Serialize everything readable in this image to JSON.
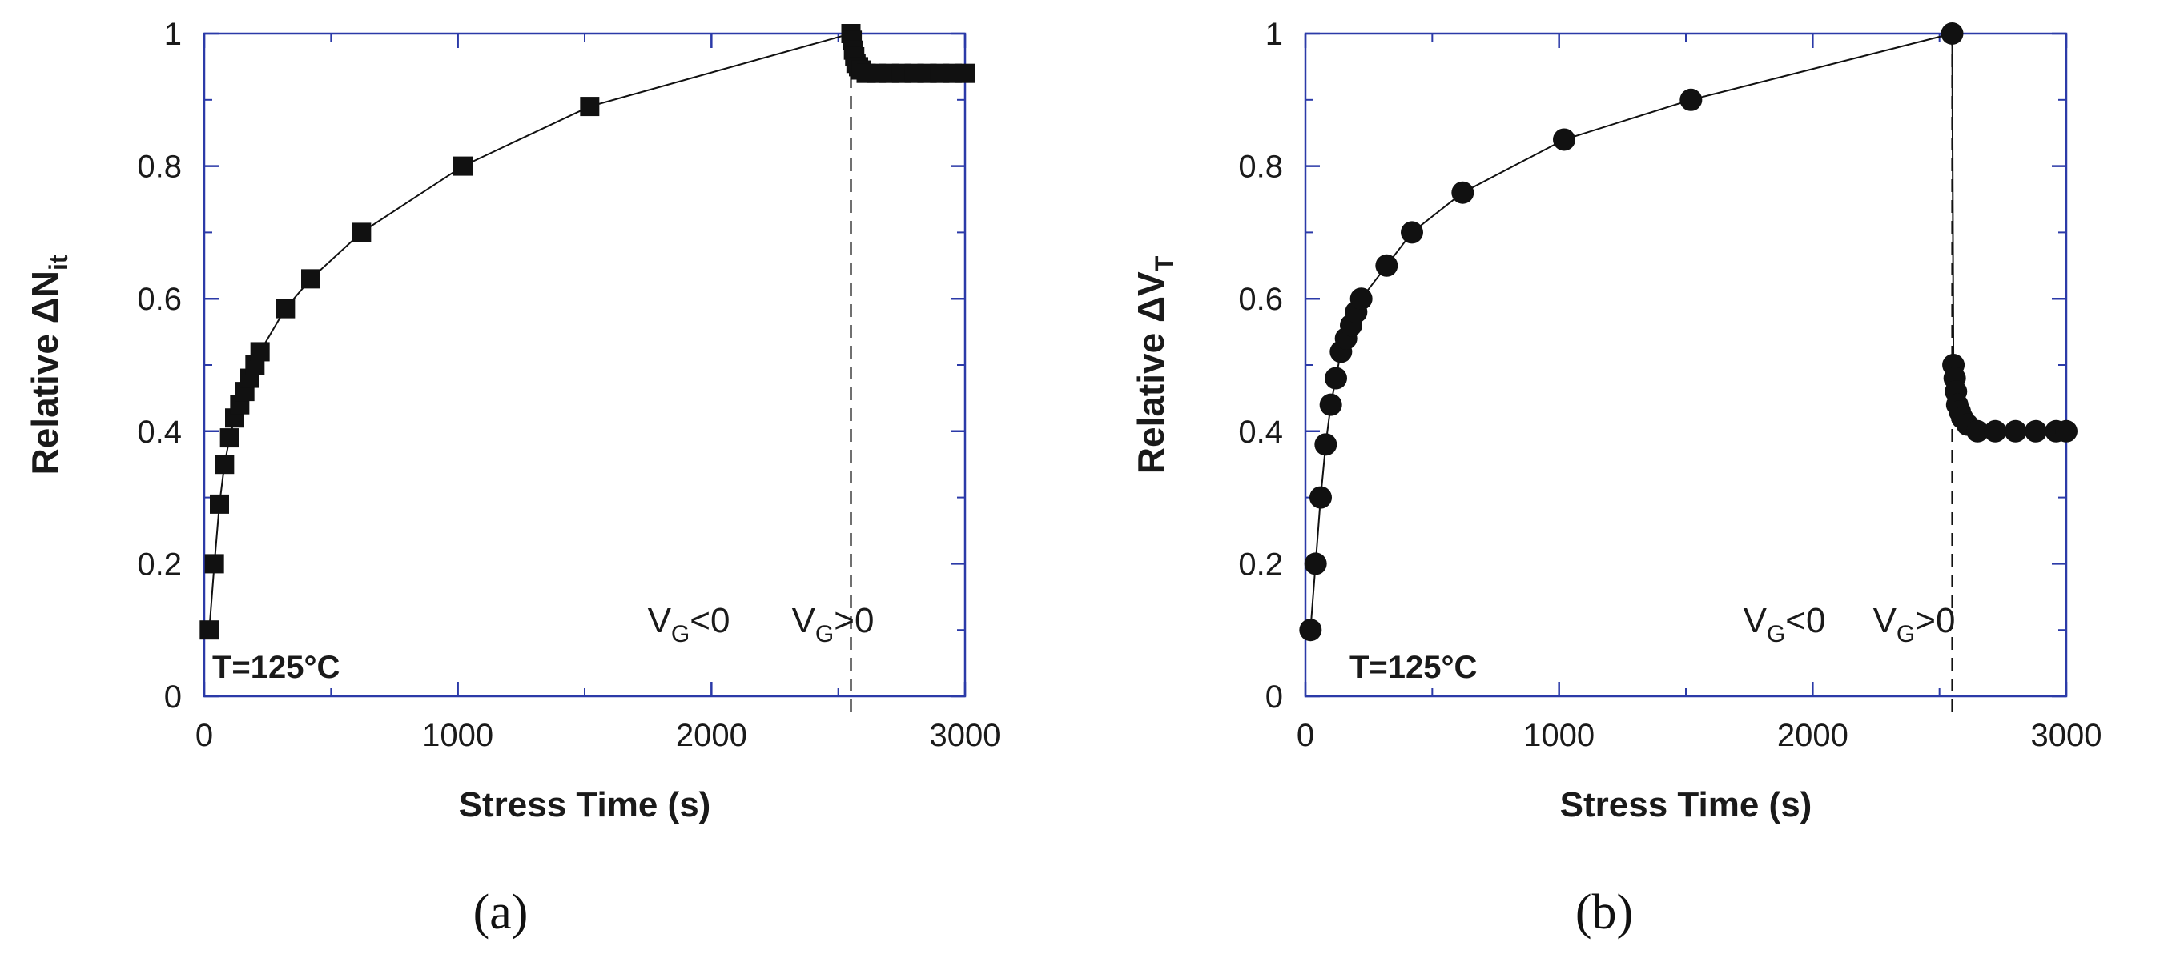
{
  "chart_data": [
    {
      "type": "line",
      "panel_label": "(a)",
      "xlabel": "Stress Time (s)",
      "ylabel": "Relative ΔN",
      "ylabel_subscript": "it",
      "xlim": [
        0,
        3000
      ],
      "ylim": [
        0,
        1
      ],
      "xticks": [
        0,
        1000,
        2000,
        3000
      ],
      "yticks": [
        0,
        0.2,
        0.4,
        0.6,
        0.8,
        1
      ],
      "ytick_labels": [
        "0",
        "0.2",
        "0.4",
        "0.6",
        "0.8",
        "1"
      ],
      "marker": "square",
      "switch_x": 2550,
      "temperature_label": "T=125°C",
      "region_left": {
        "main": "V",
        "sub": "G",
        "rest": "<0"
      },
      "region_right": {
        "main": "V",
        "sub": "G",
        "rest": ">0"
      },
      "series": [
        {
          "name": "ΔNit",
          "x": [
            20,
            40,
            60,
            80,
            100,
            120,
            140,
            160,
            180,
            200,
            220,
            320,
            420,
            620,
            1020,
            1520,
            2550,
            2555,
            2560,
            2565,
            2570,
            2580,
            2590,
            2610,
            2650,
            2700,
            2750,
            2800,
            2850,
            2900,
            2950,
            3000
          ],
          "y": [
            0.1,
            0.2,
            0.29,
            0.35,
            0.39,
            0.42,
            0.44,
            0.46,
            0.48,
            0.5,
            0.52,
            0.585,
            0.63,
            0.7,
            0.8,
            0.89,
            1.0,
            0.99,
            0.975,
            0.965,
            0.955,
            0.95,
            0.945,
            0.94,
            0.94,
            0.94,
            0.94,
            0.94,
            0.94,
            0.94,
            0.94,
            0.94
          ]
        }
      ]
    },
    {
      "type": "line",
      "panel_label": "(b)",
      "xlabel": "Stress Time (s)",
      "ylabel": "Relative ΔV",
      "ylabel_subscript": "T",
      "xlim": [
        0,
        3000
      ],
      "ylim": [
        0,
        1
      ],
      "xticks": [
        0,
        1000,
        2000,
        3000
      ],
      "yticks": [
        0,
        0.2,
        0.4,
        0.6,
        0.8,
        1
      ],
      "ytick_labels": [
        "0",
        "0.2",
        "0.4",
        "0.6",
        "0.8",
        "1"
      ],
      "marker": "circle",
      "switch_x": 2550,
      "temperature_label": "T=125°C",
      "region_left": {
        "main": "V",
        "sub": "G",
        "rest": "<0"
      },
      "region_right": {
        "main": "V",
        "sub": "G",
        "rest": ">0"
      },
      "series": [
        {
          "name": "ΔVT",
          "x": [
            20,
            40,
            60,
            80,
            100,
            120,
            140,
            160,
            180,
            200,
            220,
            320,
            420,
            620,
            1020,
            1520,
            2550,
            2555,
            2560,
            2565,
            2570,
            2580,
            2590,
            2610,
            2650,
            2720,
            2800,
            2880,
            2960,
            3000
          ],
          "y": [
            0.1,
            0.2,
            0.3,
            0.38,
            0.44,
            0.48,
            0.52,
            0.54,
            0.56,
            0.58,
            0.6,
            0.65,
            0.7,
            0.76,
            0.84,
            0.9,
            1.0,
            0.5,
            0.48,
            0.46,
            0.44,
            0.43,
            0.42,
            0.41,
            0.4,
            0.4,
            0.4,
            0.4,
            0.4,
            0.4
          ]
        }
      ]
    }
  ]
}
